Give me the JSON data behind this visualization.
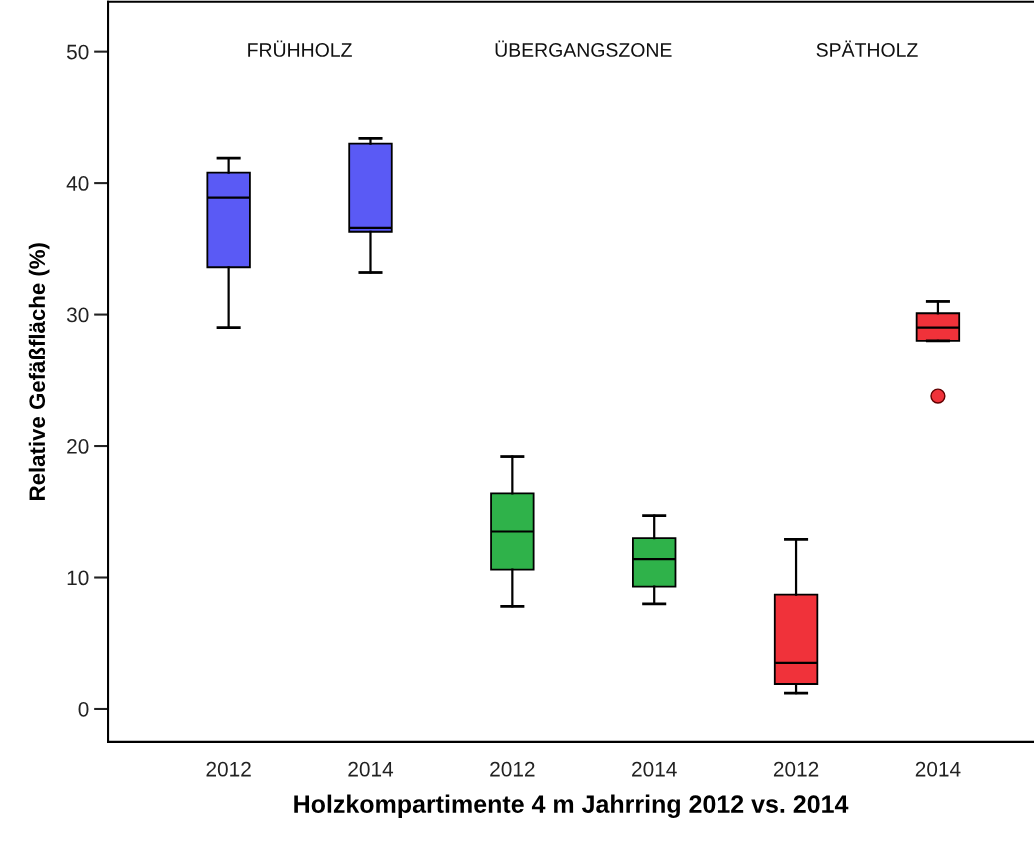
{
  "chart_data": {
    "type": "box",
    "xlabel": "Holzkompartimente 4 m Jahrring 2012 vs. 2014",
    "ylabel": "Relative Gefäßfläche (%)",
    "categories": [
      "2012",
      "2014",
      "2012",
      "2014",
      "2012",
      "2014"
    ],
    "colors": [
      "#5a5af5",
      "#5a5af5",
      "#2fb24a",
      "#2fb24a",
      "#f0323a",
      "#f0323a"
    ],
    "boxes": [
      {
        "low": 29.0,
        "q1": 33.6,
        "median": 38.9,
        "q3": 40.8,
        "high": 41.9
      },
      {
        "low": 33.2,
        "q1": 36.3,
        "median": 36.6,
        "q3": 43.0,
        "high": 43.4
      },
      {
        "low": 7.8,
        "q1": 10.6,
        "median": 13.5,
        "q3": 16.4,
        "high": 19.2
      },
      {
        "low": 8.0,
        "q1": 9.3,
        "median": 11.4,
        "q3": 13.0,
        "high": 14.7
      },
      {
        "low": 1.2,
        "q1": 1.9,
        "median": 3.5,
        "q3": 8.7,
        "high": 12.9
      },
      {
        "low": 28.0,
        "q1": 28.0,
        "median": 29.0,
        "q3": 30.1,
        "high": 31.0,
        "outliers": [
          23.8
        ]
      }
    ],
    "annotations": [
      "FRÜHHOLZ",
      "ÜBERGANGSZONE",
      "SPÄTHOLZ"
    ],
    "ylim": [
      -2.5,
      53.8
    ],
    "yticks": [
      0,
      10,
      20,
      30,
      40,
      50
    ],
    "grid": false,
    "legend": false
  }
}
